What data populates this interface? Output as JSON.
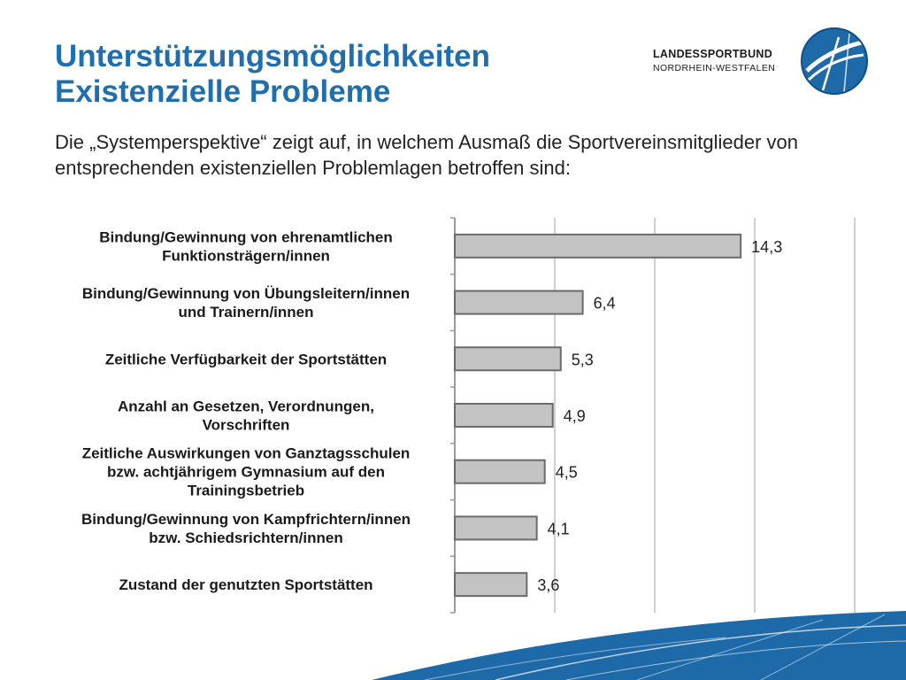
{
  "slide": {
    "title_line1": "Unterstützungsmöglichkeiten",
    "title_line2": "Existenzielle Probleme",
    "intro": "Die „Systemperspektive“ zeigt auf, in welchem Ausmaß die Sportvereinsmitglieder von entsprechenden existenziellen Problemlagen betroffen sind:"
  },
  "logo": {
    "line1": "LANDESSPORTBUND",
    "line2": "NORDRHEIN-WESTFALEN",
    "icon": "lsb-globe-icon"
  },
  "colors": {
    "title": "#1f6fae",
    "bar_fill": "#c3c3c3",
    "bar_stroke": "#6b6b6b",
    "grid": "#cfcfcf",
    "deco": "#1e6aa8"
  },
  "chart_data": {
    "type": "bar",
    "orientation": "horizontal",
    "categories": [
      [
        "Bindung/Gewinnung von ehrenamtlichen",
        "Funktionsträgern/innen"
      ],
      [
        "Bindung/Gewinnung von Übungsleitern/innen",
        "und Trainern/innen"
      ],
      [
        "Zeitliche Verfügbarkeit der Sportstätten"
      ],
      [
        "Anzahl an Gesetzen, Verordnungen,",
        "Vorschriften"
      ],
      [
        "Zeitliche Auswirkungen von Ganztagsschulen",
        "bzw. achtjährigem Gymnasium auf den",
        "Trainingsbetrieb"
      ],
      [
        "Bindung/Gewinnung von Kampfrichtern/innen",
        "bzw. Schiedsrichtern/innen"
      ],
      [
        "Zustand der genutzten Sportstätten"
      ]
    ],
    "values": [
      14.3,
      6.4,
      5.3,
      4.9,
      4.5,
      4.1,
      3.6
    ],
    "value_labels": [
      "14,3",
      "6,4",
      "5,3",
      "4,9",
      "4,5",
      "4,1",
      "3,6"
    ],
    "xlim": [
      0,
      20
    ],
    "gridlines": [
      5,
      10,
      15,
      20
    ],
    "grid": true,
    "legend": false
  }
}
